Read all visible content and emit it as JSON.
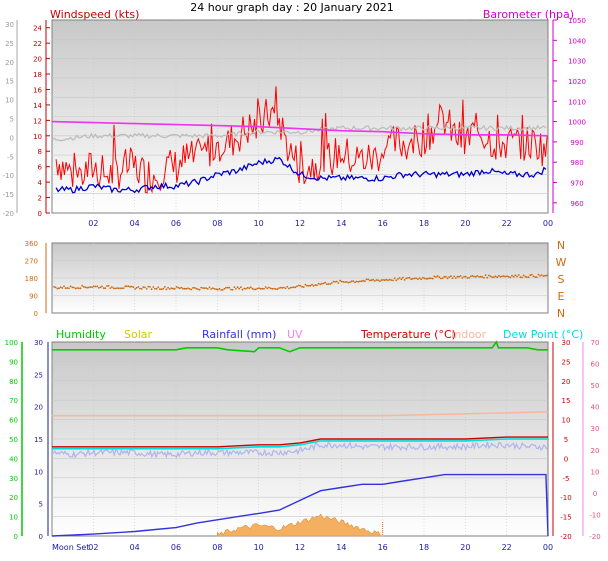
{
  "title": "24 hour graph day : 20 January 2021",
  "colors": {
    "wind": "#ff0000",
    "wind_axis": "#c00000",
    "gust_bar": "#ff3030",
    "avg_wind": "#0000cc",
    "barometer": "#ee33ee",
    "barometer_label": "#cc00cc",
    "direction": "#cc6a10",
    "humidity": "#00cc00",
    "solar": "#cccc00",
    "rainfall": "#3333dd",
    "uv": "#ee88ee",
    "temperature": "#cc0000",
    "indoor": "#f8b8a0",
    "dewpoint": "#00dddd",
    "grey_trace": "#bbbbbb",
    "lavender_trace": "#b0b4ee",
    "axis_blue": "#1a1aa0",
    "grid": "#c8c8c8",
    "panel_top": "#c8c8c8",
    "panel_bottom": "#ffffff"
  },
  "chart_data": [
    {
      "type": "line",
      "panel": "wind-barometer",
      "left_axis_label": "Windspeed (kts)",
      "right_axis_label": "Barometer (hpa)",
      "x_ticks": [
        "02",
        "04",
        "06",
        "08",
        "10",
        "12",
        "14",
        "16",
        "18",
        "20",
        "22",
        "00"
      ],
      "outer_axis_ticks": [
        "30",
        "25",
        "20",
        "15",
        "10",
        "5",
        "0",
        "-5",
        "-10",
        "-15",
        "-20"
      ],
      "wind_axis_ticks": [
        "24",
        "22",
        "20",
        "18",
        "16",
        "14",
        "12",
        "10",
        "8",
        "6",
        "4",
        "2",
        "0"
      ],
      "baro_axis_ticks": [
        "1050",
        "1040",
        "1030",
        "1020",
        "1010",
        "1000",
        "990",
        "980",
        "970",
        "960"
      ],
      "wind_ylim": [
        0,
        25
      ],
      "baro_ylim": [
        955,
        1050
      ],
      "series": [
        {
          "name": "Windspeed (kts)",
          "role": "gust",
          "points": [
            [
              0.2,
              7
            ],
            [
              0.6,
              6
            ],
            [
              1,
              5
            ],
            [
              1.5,
              5
            ],
            [
              2,
              6
            ],
            [
              2.5,
              5
            ],
            [
              3,
              5
            ],
            [
              3.5,
              6
            ],
            [
              4,
              6
            ],
            [
              4.5,
              5
            ],
            [
              5,
              5
            ],
            [
              5.5,
              6
            ],
            [
              6,
              6
            ],
            [
              6.5,
              7
            ],
            [
              7,
              7
            ],
            [
              7.5,
              8
            ],
            [
              8,
              9
            ],
            [
              8.5,
              9
            ],
            [
              9,
              10
            ],
            [
              9.5,
              11
            ],
            [
              10,
              11
            ],
            [
              10.5,
              13
            ],
            [
              11,
              12
            ],
            [
              11.5,
              8
            ],
            [
              12,
              6
            ],
            [
              12.5,
              6
            ],
            [
              13,
              7
            ],
            [
              13.5,
              7
            ],
            [
              14,
              8
            ],
            [
              14.5,
              7
            ],
            [
              15,
              7
            ],
            [
              15.5,
              7
            ],
            [
              16,
              8
            ],
            [
              16.5,
              9
            ],
            [
              17,
              9
            ],
            [
              17.5,
              9
            ],
            [
              18,
              10
            ],
            [
              18.5,
              11
            ],
            [
              19,
              12
            ],
            [
              19.5,
              10
            ],
            [
              20,
              9
            ],
            [
              20.5,
              11
            ],
            [
              21,
              10
            ],
            [
              21.5,
              9
            ],
            [
              22,
              9
            ],
            [
              22.5,
              9
            ],
            [
              23,
              9
            ],
            [
              23.5,
              9
            ],
            [
              24,
              8
            ]
          ]
        },
        {
          "name": "Windspeed (kts)",
          "role": "average",
          "points": [
            [
              0.2,
              3
            ],
            [
              1,
              3
            ],
            [
              2,
              3.5
            ],
            [
              3,
              3
            ],
            [
              4,
              3
            ],
            [
              5,
              3.5
            ],
            [
              6,
              3.5
            ],
            [
              7,
              4
            ],
            [
              8,
              5
            ],
            [
              9,
              5.5
            ],
            [
              10,
              6.5
            ],
            [
              11,
              7
            ],
            [
              11.5,
              6
            ],
            [
              12,
              5
            ],
            [
              13,
              4.5
            ],
            [
              14,
              4.5
            ],
            [
              15,
              4.5
            ],
            [
              16,
              4.5
            ],
            [
              17,
              5
            ],
            [
              18,
              5
            ],
            [
              19,
              5
            ],
            [
              20,
              5
            ],
            [
              21,
              5.5
            ],
            [
              22,
              5
            ],
            [
              23,
              5
            ],
            [
              23.5,
              5
            ],
            [
              24,
              6
            ]
          ]
        },
        {
          "name": "Barometer (hpa)",
          "points": [
            [
              0,
              1000
            ],
            [
              2,
              999.5
            ],
            [
              4,
              999
            ],
            [
              6,
              998.5
            ],
            [
              8,
              998
            ],
            [
              10,
              997.5
            ],
            [
              12,
              996.5
            ],
            [
              14,
              995.5
            ],
            [
              16,
              995
            ],
            [
              18,
              994
            ],
            [
              20,
              993.5
            ],
            [
              22,
              993.5
            ],
            [
              24,
              993
            ]
          ]
        },
        {
          "name": "",
          "role": "grey-trace",
          "points": [
            [
              0,
              9.5
            ],
            [
              2,
              10
            ],
            [
              4,
              10
            ],
            [
              6,
              10
            ],
            [
              8,
              10
            ],
            [
              10,
              10.5
            ],
            [
              12,
              10.5
            ],
            [
              14,
              11
            ],
            [
              16,
              11
            ],
            [
              18,
              11
            ],
            [
              20,
              11
            ],
            [
              22,
              11
            ],
            [
              24,
              11
            ]
          ]
        }
      ]
    },
    {
      "type": "scatter",
      "panel": "wind-direction",
      "left_axis_ticks": [
        "360",
        "270",
        "180",
        "90",
        "0"
      ],
      "right_axis_ticks": [
        "N",
        "W",
        "S",
        "E",
        "N"
      ],
      "ylim": [
        0,
        360
      ],
      "series": [
        {
          "name": "",
          "points": [
            [
              0,
              130
            ],
            [
              2,
              135
            ],
            [
              4,
              130
            ],
            [
              6,
              128
            ],
            [
              8,
              125
            ],
            [
              10,
              128
            ],
            [
              11,
              128
            ],
            [
              12,
              135
            ],
            [
              13,
              150
            ],
            [
              14,
              160
            ],
            [
              15,
              165
            ],
            [
              16,
              170
            ],
            [
              17,
              175
            ],
            [
              18,
              180
            ],
            [
              19,
              185
            ],
            [
              20,
              185
            ],
            [
              21,
              188
            ],
            [
              22,
              190
            ],
            [
              23,
              190
            ],
            [
              24,
              192
            ]
          ]
        }
      ]
    },
    {
      "type": "line",
      "panel": "multi",
      "legend": [
        "Humidity",
        "Solar",
        "Rainfall (mm)",
        "UV",
        "Temperature (°C)",
        "Indoor",
        "Dew Point (°C)"
      ],
      "x_ticks": [
        "02",
        "04",
        "06",
        "08",
        "10",
        "12",
        "14",
        "16",
        "18",
        "20",
        "22",
        "00"
      ],
      "x_first_label": "Moon Set",
      "humidity_axis_ticks": [
        "100",
        "90",
        "80",
        "70",
        "60",
        "50",
        "40",
        "30",
        "20",
        "10",
        "0"
      ],
      "rain_axis_ticks": [
        "30",
        "25",
        "20",
        "15",
        "10",
        "5",
        "0"
      ],
      "temp_axis_ticks": [
        "30",
        "25",
        "20",
        "15",
        "10",
        "5",
        "0",
        "-5",
        "-10",
        "-15",
        "-20"
      ],
      "far_right_ticks": [
        "70",
        "60",
        "50",
        "40",
        "30",
        "20",
        "10",
        "0",
        "-10",
        "-20"
      ],
      "series": [
        {
          "name": "Humidity",
          "points": [
            [
              0,
              96
            ],
            [
              2,
              96
            ],
            [
              4,
              96
            ],
            [
              6,
              96
            ],
            [
              6.5,
              97
            ],
            [
              8,
              97
            ],
            [
              8.5,
              96
            ],
            [
              9.8,
              95
            ],
            [
              10,
              97
            ],
            [
              11,
              97
            ],
            [
              11.5,
              95
            ],
            [
              12,
              97
            ],
            [
              14,
              97
            ],
            [
              16,
              97
            ],
            [
              18,
              97
            ],
            [
              20,
              97
            ],
            [
              21.3,
              97
            ],
            [
              21.5,
              100
            ],
            [
              21.6,
              97
            ],
            [
              23,
              97
            ],
            [
              23.5,
              96
            ],
            [
              24,
              96
            ]
          ]
        },
        {
          "name": "Temperature (°C)",
          "points": [
            [
              0,
              3
            ],
            [
              2,
              3
            ],
            [
              4,
              3
            ],
            [
              6,
              3
            ],
            [
              8,
              3
            ],
            [
              10,
              3.5
            ],
            [
              11,
              3.5
            ],
            [
              12,
              4
            ],
            [
              13,
              5
            ],
            [
              14,
              5
            ],
            [
              15,
              5
            ],
            [
              16,
              5
            ],
            [
              18,
              5
            ],
            [
              20,
              5
            ],
            [
              22,
              5.5
            ],
            [
              24,
              5.5
            ]
          ]
        },
        {
          "name": "Dew Point (°C)",
          "points": [
            [
              0,
              2.5
            ],
            [
              2,
              2.5
            ],
            [
              4,
              2.5
            ],
            [
              6,
              2.5
            ],
            [
              8,
              2.5
            ],
            [
              10,
              3
            ],
            [
              11,
              3
            ],
            [
              12,
              3.5
            ],
            [
              13,
              4.5
            ],
            [
              14,
              4.5
            ],
            [
              16,
              4.5
            ],
            [
              18,
              4.5
            ],
            [
              20,
              4.5
            ],
            [
              22,
              5
            ],
            [
              24,
              5
            ]
          ]
        },
        {
          "name": "Indoor",
          "points": [
            [
              0,
              11
            ],
            [
              4,
              11
            ],
            [
              8,
              11
            ],
            [
              12,
              11
            ],
            [
              16,
              11
            ],
            [
              20,
              11.5
            ],
            [
              24,
              12
            ]
          ]
        },
        {
          "name": "",
          "role": "lavender-trace",
          "points": [
            [
              0,
              1.5
            ],
            [
              1,
              1
            ],
            [
              2,
              1.5
            ],
            [
              3,
              1.5
            ],
            [
              4,
              1.5
            ],
            [
              5,
              1
            ],
            [
              6,
              1
            ],
            [
              7,
              1.5
            ],
            [
              8,
              1.5
            ],
            [
              9,
              1.5
            ],
            [
              10,
              1.5
            ],
            [
              11,
              1.5
            ],
            [
              12,
              2
            ],
            [
              13,
              3.5
            ],
            [
              14,
              3.5
            ],
            [
              15,
              3
            ],
            [
              16,
              3
            ],
            [
              17,
              3
            ],
            [
              18,
              3
            ],
            [
              19,
              3
            ],
            [
              20,
              3
            ],
            [
              21,
              3.5
            ],
            [
              22,
              3.5
            ],
            [
              23,
              3
            ],
            [
              24,
              3
            ]
          ]
        },
        {
          "name": "Rainfall (mm)",
          "points": [
            [
              0,
              0
            ],
            [
              2,
              0.3
            ],
            [
              4,
              0.7
            ],
            [
              5,
              1
            ],
            [
              6,
              1.3
            ],
            [
              7,
              2
            ],
            [
              8,
              2.5
            ],
            [
              9,
              3
            ],
            [
              10,
              3.5
            ],
            [
              11,
              4
            ],
            [
              12,
              5.5
            ],
            [
              13,
              7
            ],
            [
              14,
              7.5
            ],
            [
              15,
              8
            ],
            [
              16,
              8
            ],
            [
              17,
              8.5
            ],
            [
              18,
              9
            ],
            [
              19,
              9.5
            ],
            [
              20,
              9.5
            ],
            [
              21,
              9.5
            ],
            [
              22,
              9.5
            ],
            [
              23,
              9.5
            ],
            [
              23.9,
              9.5
            ],
            [
              24,
              0
            ]
          ]
        },
        {
          "name": "Solar",
          "points": [
            [
              8,
              0
            ],
            [
              9,
              1
            ],
            [
              10,
              1.5
            ],
            [
              11,
              1
            ],
            [
              12,
              2
            ],
            [
              13,
              3
            ],
            [
              14,
              2
            ],
            [
              15,
              1
            ],
            [
              16,
              0
            ]
          ]
        }
      ]
    }
  ]
}
